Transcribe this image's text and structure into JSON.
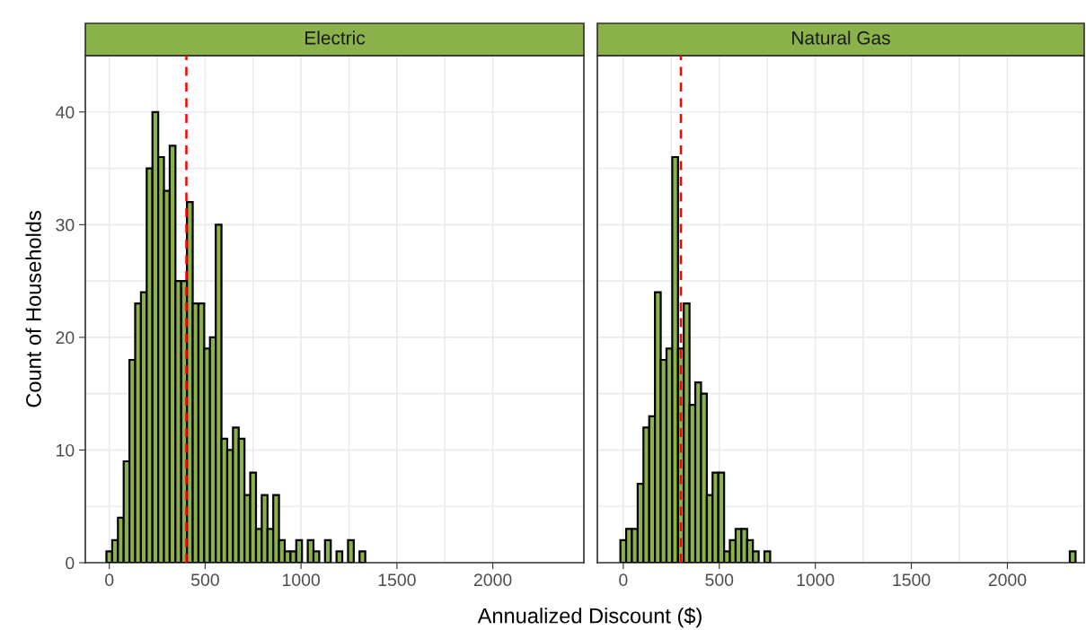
{
  "chart_data": [
    {
      "type": "histogram",
      "title": "Electric",
      "xlabel": "Annualized Discount ($)",
      "ylabel": "Count of Households",
      "bins": [
        -15,
        15,
        45,
        75,
        105,
        135,
        165,
        195,
        225,
        255,
        285,
        315,
        345,
        375,
        405,
        435,
        465,
        495,
        525,
        555,
        585,
        615,
        645,
        675,
        705,
        735,
        765,
        795,
        825,
        855,
        885,
        915,
        945,
        975,
        1005,
        1035,
        1065,
        1095,
        1125,
        1155,
        1185,
        1215,
        1245,
        1275,
        1305,
        1335,
        1365,
        1395,
        1425,
        1455,
        1485,
        1515,
        1545,
        1575,
        1605,
        1635,
        1665,
        1695,
        1725,
        1755,
        1785,
        1815,
        1845,
        1875,
        1905,
        1935,
        1965,
        1995,
        2025,
        2055,
        2085,
        2115,
        2145,
        2175,
        2205,
        2235,
        2265,
        2295,
        2325,
        2355
      ],
      "values": [
        1,
        2,
        4,
        9,
        18,
        23,
        24,
        35,
        40,
        36,
        33,
        37,
        25,
        25,
        32,
        23,
        23,
        19,
        20,
        30,
        11,
        10,
        12,
        11,
        6,
        8,
        3,
        6,
        3,
        6,
        2,
        1,
        1,
        2,
        0,
        2,
        1,
        0,
        2,
        0,
        1,
        0,
        2,
        0,
        1,
        0,
        0,
        0,
        0,
        0,
        0,
        0,
        0,
        0,
        0,
        0,
        0,
        0,
        0,
        0,
        0,
        0,
        0,
        0,
        0,
        0,
        0,
        0,
        0,
        0,
        0,
        0,
        0,
        0,
        0,
        0,
        0,
        0,
        0
      ],
      "color": "#8ab14a",
      "xlim": [
        -125,
        2475
      ],
      "xticks": [
        0,
        500,
        1000,
        1500,
        2000
      ],
      "ylim": [
        0,
        45
      ],
      "yticks": [
        0,
        10,
        20,
        30,
        40
      ],
      "ref_lines": [
        {
          "axis": "x",
          "value": 402,
          "color": "#ff0000",
          "line_style": "dashed"
        }
      ],
      "grid": true
    },
    {
      "type": "histogram",
      "title": "Natural Gas",
      "bins": [
        -15,
        15,
        45,
        75,
        105,
        135,
        165,
        195,
        225,
        255,
        285,
        315,
        345,
        375,
        405,
        435,
        465,
        495,
        525,
        555,
        585,
        615,
        645,
        675,
        705,
        735,
        765,
        795,
        825,
        855,
        885,
        915,
        945,
        975,
        1005,
        1035,
        1065,
        1095,
        1125,
        1155,
        1185,
        1215,
        1245,
        1275,
        1305,
        1335,
        1365,
        1395,
        1425,
        1455,
        1485,
        1515,
        1545,
        1575,
        1605,
        1635,
        1665,
        1695,
        1725,
        1755,
        1785,
        1815,
        1845,
        1875,
        1905,
        1935,
        1965,
        1995,
        2025,
        2055,
        2085,
        2115,
        2145,
        2175,
        2205,
        2235,
        2265,
        2295,
        2325,
        2355
      ],
      "values": [
        2,
        3,
        3,
        7,
        12,
        13,
        24,
        18,
        19,
        36,
        19,
        23,
        14,
        16,
        15,
        6,
        8,
        8,
        1,
        2,
        3,
        3,
        2,
        1,
        0,
        1,
        0,
        0,
        0,
        0,
        0,
        0,
        0,
        0,
        0,
        0,
        0,
        0,
        0,
        0,
        0,
        0,
        0,
        0,
        0,
        0,
        0,
        0,
        0,
        0,
        0,
        0,
        0,
        0,
        0,
        0,
        0,
        0,
        0,
        0,
        0,
        0,
        0,
        0,
        0,
        0,
        0,
        0,
        0,
        0,
        0,
        0,
        0,
        0,
        0,
        0,
        0,
        0,
        1
      ],
      "color": "#8ab14a",
      "xlim": [
        -135,
        2400
      ],
      "xticks": [
        0,
        500,
        1000,
        1500,
        2000
      ],
      "ylim": [
        0,
        45
      ],
      "yticks": [
        0,
        10,
        20,
        30,
        40
      ],
      "ref_lines": [
        {
          "axis": "x",
          "value": 300,
          "color": "#ff0000",
          "line_style": "dashed"
        }
      ],
      "grid": true,
      "tick_labels": "x"
    }
  ]
}
